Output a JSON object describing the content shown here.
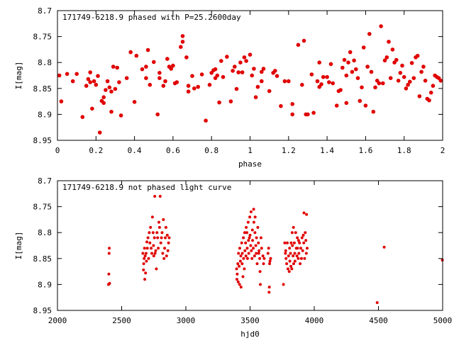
{
  "chart_data": [
    {
      "type": "scatter",
      "title": "171749-6218.9 phased with P=25.2600day",
      "xlabel": "phase",
      "ylabel": "I[mag]",
      "xlim": [
        0,
        2
      ],
      "ylim": [
        8.7,
        8.95
      ],
      "y_inverted": true,
      "grid": false,
      "x_ticks": [
        "0",
        "0.2",
        "0.4",
        "0.6",
        "0.8",
        "1",
        "1.2",
        "1.4",
        "1.6",
        "1.8",
        "2"
      ],
      "y_ticks": [
        "8.7",
        "8.75",
        "8.8",
        "8.85",
        "8.9",
        "8.95"
      ],
      "marker_color": "#e00000",
      "points": [
        [
          0.01,
          8.825
        ],
        [
          0.02,
          8.875
        ],
        [
          0.05,
          8.822
        ],
        [
          0.08,
          8.836
        ],
        [
          0.1,
          8.822
        ],
        [
          0.13,
          8.905
        ],
        [
          0.15,
          8.845
        ],
        [
          0.16,
          8.832
        ],
        [
          0.17,
          8.819
        ],
        [
          0.17,
          8.838
        ],
        [
          0.18,
          8.889
        ],
        [
          0.19,
          8.836
        ],
        [
          0.2,
          8.843
        ],
        [
          0.21,
          8.826
        ],
        [
          0.22,
          8.935
        ],
        [
          0.23,
          8.874
        ],
        [
          0.24,
          8.867
        ],
        [
          0.24,
          8.878
        ],
        [
          0.25,
          8.853
        ],
        [
          0.26,
          8.836
        ],
        [
          0.27,
          8.848
        ],
        [
          0.28,
          8.895
        ],
        [
          0.28,
          8.856
        ],
        [
          0.29,
          8.808
        ],
        [
          0.3,
          8.851
        ],
        [
          0.31,
          8.81
        ],
        [
          0.32,
          8.838
        ],
        [
          0.33,
          8.902
        ],
        [
          0.36,
          8.83
        ],
        [
          0.38,
          8.78
        ],
        [
          0.4,
          8.876
        ],
        [
          0.41,
          8.787
        ],
        [
          0.44,
          8.813
        ],
        [
          0.46,
          8.808
        ],
        [
          0.46,
          8.83
        ],
        [
          0.47,
          8.776
        ],
        [
          0.48,
          8.843
        ],
        [
          0.5,
          8.799
        ],
        [
          0.52,
          8.9
        ],
        [
          0.53,
          8.83
        ],
        [
          0.53,
          8.82
        ],
        [
          0.55,
          8.845
        ],
        [
          0.56,
          8.836
        ],
        [
          0.57,
          8.793
        ],
        [
          0.58,
          8.808
        ],
        [
          0.59,
          8.812
        ],
        [
          0.6,
          8.806
        ],
        [
          0.61,
          8.84
        ],
        [
          0.62,
          8.838
        ],
        [
          0.64,
          8.77
        ],
        [
          0.65,
          8.749
        ],
        [
          0.65,
          8.76
        ],
        [
          0.67,
          8.79
        ],
        [
          0.68,
          8.856
        ],
        [
          0.68,
          8.845
        ],
        [
          0.7,
          8.826
        ],
        [
          0.71,
          8.85
        ],
        [
          0.73,
          8.847
        ],
        [
          0.75,
          8.823
        ],
        [
          0.77,
          8.912
        ],
        [
          0.79,
          8.843
        ],
        [
          0.8,
          8.82
        ],
        [
          0.81,
          8.815
        ],
        [
          0.82,
          8.813
        ],
        [
          0.82,
          8.83
        ],
        [
          0.83,
          8.825
        ],
        [
          0.84,
          8.877
        ],
        [
          0.85,
          8.797
        ],
        [
          0.86,
          8.828
        ],
        [
          0.88,
          8.789
        ],
        [
          0.9,
          8.875
        ],
        [
          0.91,
          8.816
        ],
        [
          0.92,
          8.808
        ],
        [
          0.93,
          8.851
        ],
        [
          0.94,
          8.819
        ],
        [
          0.95,
          8.8
        ],
        [
          0.96,
          8.819
        ],
        [
          0.97,
          8.79
        ],
        [
          0.98,
          8.797
        ],
        [
          1.0,
          8.785
        ],
        [
          1.01,
          8.825
        ],
        [
          1.02,
          8.812
        ],
        [
          1.03,
          8.867
        ],
        [
          1.04,
          8.847
        ],
        [
          1.06,
          8.836
        ],
        [
          1.06,
          8.818
        ],
        [
          1.07,
          8.812
        ],
        [
          1.1,
          8.855
        ],
        [
          1.12,
          8.82
        ],
        [
          1.13,
          8.816
        ],
        [
          1.14,
          8.826
        ],
        [
          1.16,
          8.884
        ],
        [
          1.18,
          8.836
        ],
        [
          1.2,
          8.836
        ],
        [
          1.22,
          8.9
        ],
        [
          1.22,
          8.88
        ],
        [
          1.25,
          8.766
        ],
        [
          1.27,
          8.843
        ],
        [
          1.28,
          8.758
        ],
        [
          1.29,
          8.9
        ],
        [
          1.3,
          8.9
        ],
        [
          1.32,
          8.823
        ],
        [
          1.33,
          8.897
        ],
        [
          1.35,
          8.836
        ],
        [
          1.36,
          8.847
        ],
        [
          1.36,
          8.8
        ],
        [
          1.37,
          8.842
        ],
        [
          1.38,
          8.828
        ],
        [
          1.4,
          8.828
        ],
        [
          1.41,
          8.838
        ],
        [
          1.42,
          8.803
        ],
        [
          1.43,
          8.84
        ],
        [
          1.45,
          8.883
        ],
        [
          1.46,
          8.855
        ],
        [
          1.47,
          8.853
        ],
        [
          1.48,
          8.81
        ],
        [
          1.49,
          8.795
        ],
        [
          1.5,
          8.825
        ],
        [
          1.5,
          8.878
        ],
        [
          1.51,
          8.8
        ],
        [
          1.52,
          8.78
        ],
        [
          1.53,
          8.818
        ],
        [
          1.54,
          8.796
        ],
        [
          1.55,
          8.813
        ],
        [
          1.56,
          8.83
        ],
        [
          1.57,
          8.874
        ],
        [
          1.58,
          8.848
        ],
        [
          1.59,
          8.771
        ],
        [
          1.6,
          8.883
        ],
        [
          1.61,
          8.808
        ],
        [
          1.62,
          8.745
        ],
        [
          1.63,
          8.818
        ],
        [
          1.64,
          8.895
        ],
        [
          1.65,
          8.848
        ],
        [
          1.66,
          8.835
        ],
        [
          1.67,
          8.84
        ],
        [
          1.68,
          8.73
        ],
        [
          1.69,
          8.84
        ],
        [
          1.7,
          8.796
        ],
        [
          1.71,
          8.79
        ],
        [
          1.72,
          8.76
        ],
        [
          1.73,
          8.83
        ],
        [
          1.74,
          8.775
        ],
        [
          1.75,
          8.8
        ],
        [
          1.76,
          8.795
        ],
        [
          1.77,
          8.835
        ],
        [
          1.78,
          8.82
        ],
        [
          1.79,
          8.806
        ],
        [
          1.8,
          8.828
        ],
        [
          1.81,
          8.85
        ],
        [
          1.82,
          8.843
        ],
        [
          1.83,
          8.837
        ],
        [
          1.84,
          8.801
        ],
        [
          1.85,
          8.83
        ],
        [
          1.86,
          8.79
        ],
        [
          1.87,
          8.787
        ],
        [
          1.88,
          8.865
        ],
        [
          1.89,
          8.818
        ],
        [
          1.9,
          8.808
        ],
        [
          1.91,
          8.835
        ],
        [
          1.92,
          8.87
        ],
        [
          1.93,
          8.873
        ],
        [
          1.94,
          8.858
        ],
        [
          1.95,
          8.845
        ],
        [
          1.96,
          8.825
        ],
        [
          1.97,
          8.828
        ],
        [
          1.98,
          8.83
        ],
        [
          1.99,
          8.835
        ]
      ]
    },
    {
      "type": "scatter",
      "title": "171749-6218.9 not phased light curve",
      "xlabel": "hjd0",
      "ylabel": "I[mag]",
      "xlim": [
        2000,
        5000
      ],
      "ylim": [
        8.7,
        8.95
      ],
      "y_inverted": true,
      "grid": false,
      "x_ticks": [
        "2000",
        "2500",
        "3000",
        "3500",
        "4000",
        "4500",
        "5000"
      ],
      "y_ticks": [
        "8.7",
        "8.75",
        "8.8",
        "8.85",
        "8.9",
        "8.95"
      ],
      "marker_color": "#e00000",
      "points": [
        [
          2398,
          8.9
        ],
        [
          2400,
          8.88
        ],
        [
          2402,
          8.84
        ],
        [
          2404,
          8.83
        ],
        [
          2406,
          8.898
        ],
        [
          2665,
          8.84
        ],
        [
          2670,
          8.872
        ],
        [
          2672,
          8.86
        ],
        [
          2675,
          8.85
        ],
        [
          2678,
          8.83
        ],
        [
          2680,
          8.89
        ],
        [
          2683,
          8.845
        ],
        [
          2686,
          8.878
        ],
        [
          2690,
          8.84
        ],
        [
          2693,
          8.855
        ],
        [
          2696,
          8.818
        ],
        [
          2700,
          8.83
        ],
        [
          2705,
          8.81
        ],
        [
          2710,
          8.85
        ],
        [
          2715,
          8.8
        ],
        [
          2720,
          8.82
        ],
        [
          2725,
          8.79
        ],
        [
          2730,
          8.83
        ],
        [
          2735,
          8.84
        ],
        [
          2740,
          8.77
        ],
        [
          2745,
          8.8
        ],
        [
          2748,
          8.825
        ],
        [
          2750,
          8.845
        ],
        [
          2755,
          8.81
        ],
        [
          2758,
          8.73
        ],
        [
          2760,
          8.84
        ],
        [
          2765,
          8.835
        ],
        [
          2770,
          8.87
        ],
        [
          2775,
          8.8
        ],
        [
          2780,
          8.81
        ],
        [
          2785,
          8.83
        ],
        [
          2790,
          8.78
        ],
        [
          2795,
          8.79
        ],
        [
          2800,
          8.73
        ],
        [
          2805,
          8.82
        ],
        [
          2810,
          8.81
        ],
        [
          2815,
          8.8
        ],
        [
          2820,
          8.84
        ],
        [
          2825,
          8.775
        ],
        [
          2830,
          8.85
        ],
        [
          2835,
          8.83
        ],
        [
          2840,
          8.81
        ],
        [
          2845,
          8.79
        ],
        [
          2850,
          8.845
        ],
        [
          2855,
          8.805
        ],
        [
          2860,
          8.835
        ],
        [
          2865,
          8.82
        ],
        [
          2870,
          8.81
        ],
        [
          3395,
          8.87
        ],
        [
          3398,
          8.89
        ],
        [
          3400,
          8.88
        ],
        [
          3405,
          8.86
        ],
        [
          3408,
          8.895
        ],
        [
          3410,
          8.84
        ],
        [
          3415,
          8.865
        ],
        [
          3418,
          8.9
        ],
        [
          3420,
          8.83
        ],
        [
          3425,
          8.855
        ],
        [
          3428,
          8.845
        ],
        [
          3430,
          8.905
        ],
        [
          3435,
          8.82
        ],
        [
          3438,
          8.86
        ],
        [
          3440,
          8.84
        ],
        [
          3445,
          8.885
        ],
        [
          3448,
          8.81
        ],
        [
          3450,
          8.85
        ],
        [
          3455,
          8.87
        ],
        [
          3458,
          8.8
        ],
        [
          3460,
          8.835
        ],
        [
          3465,
          8.82
        ],
        [
          3468,
          8.845
        ],
        [
          3470,
          8.79
        ],
        [
          3475,
          8.8
        ],
        [
          3478,
          8.83
        ],
        [
          3480,
          8.85
        ],
        [
          3485,
          8.78
        ],
        [
          3488,
          8.815
        ],
        [
          3490,
          8.84
        ],
        [
          3495,
          8.81
        ],
        [
          3498,
          8.77
        ],
        [
          3500,
          8.805
        ],
        [
          3505,
          8.825
        ],
        [
          3508,
          8.76
        ],
        [
          3510,
          8.835
        ],
        [
          3515,
          8.85
        ],
        [
          3518,
          8.795
        ],
        [
          3520,
          8.815
        ],
        [
          3525,
          8.83
        ],
        [
          3528,
          8.755
        ],
        [
          3530,
          8.78
        ],
        [
          3535,
          8.845
        ],
        [
          3538,
          8.8
        ],
        [
          3540,
          8.77
        ],
        [
          3545,
          8.825
        ],
        [
          3548,
          8.84
        ],
        [
          3550,
          8.81
        ],
        [
          3555,
          8.86
        ],
        [
          3560,
          8.79
        ],
        [
          3565,
          8.82
        ],
        [
          3568,
          8.84
        ],
        [
          3570,
          8.835
        ],
        [
          3575,
          8.85
        ],
        [
          3578,
          8.875
        ],
        [
          3580,
          8.9
        ],
        [
          3585,
          8.81
        ],
        [
          3590,
          8.83
        ],
        [
          3600,
          8.845
        ],
        [
          3605,
          8.86
        ],
        [
          3610,
          8.85
        ],
        [
          3640,
          8.84
        ],
        [
          3645,
          8.83
        ],
        [
          3648,
          8.915
        ],
        [
          3650,
          8.905
        ],
        [
          3652,
          8.86
        ],
        [
          3655,
          8.855
        ],
        [
          3660,
          8.85
        ],
        [
          3760,
          8.9
        ],
        [
          3770,
          8.82
        ],
        [
          3775,
          8.84
        ],
        [
          3778,
          8.835
        ],
        [
          3780,
          8.85
        ],
        [
          3785,
          8.86
        ],
        [
          3790,
          8.82
        ],
        [
          3795,
          8.87
        ],
        [
          3800,
          8.845
        ],
        [
          3805,
          8.875
        ],
        [
          3808,
          8.83
        ],
        [
          3810,
          8.855
        ],
        [
          3815,
          8.84
        ],
        [
          3818,
          8.865
        ],
        [
          3820,
          8.82
        ],
        [
          3825,
          8.87
        ],
        [
          3828,
          8.8
        ],
        [
          3830,
          8.825
        ],
        [
          3835,
          8.845
        ],
        [
          3838,
          8.79
        ],
        [
          3840,
          8.86
        ],
        [
          3845,
          8.82
        ],
        [
          3848,
          8.84
        ],
        [
          3850,
          8.855
        ],
        [
          3855,
          8.8
        ],
        [
          3860,
          8.83
        ],
        [
          3865,
          8.845
        ],
        [
          3868,
          8.81
        ],
        [
          3870,
          8.83
        ],
        [
          3875,
          8.85
        ],
        [
          3878,
          8.815
        ],
        [
          3880,
          8.84
        ],
        [
          3885,
          8.82
        ],
        [
          3890,
          8.86
        ],
        [
          3895,
          8.83
        ],
        [
          3900,
          8.85
        ],
        [
          3905,
          8.81
        ],
        [
          3910,
          8.835
        ],
        [
          3915,
          8.805
        ],
        [
          3918,
          8.82
        ],
        [
          3920,
          8.762
        ],
        [
          3925,
          8.85
        ],
        [
          3930,
          8.8
        ],
        [
          3935,
          8.815
        ],
        [
          3938,
          8.84
        ],
        [
          3940,
          8.765
        ],
        [
          3945,
          8.83
        ],
        [
          4490,
          8.935
        ],
        [
          4545,
          8.828
        ],
        [
          4998,
          8.853
        ]
      ]
    }
  ]
}
